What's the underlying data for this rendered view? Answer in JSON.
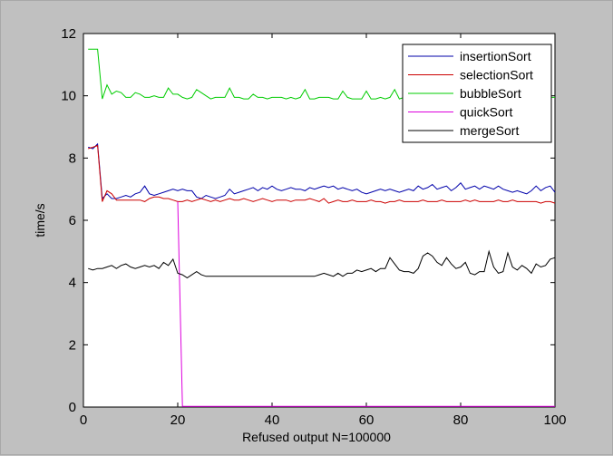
{
  "chart_data": {
    "type": "line",
    "xlabel": "Refused output N=100000",
    "ylabel": "time/s",
    "xlim": [
      0,
      100
    ],
    "ylim": [
      0,
      12
    ],
    "xticks": [
      0,
      20,
      40,
      60,
      80,
      100
    ],
    "yticks": [
      0,
      2,
      4,
      6,
      8,
      10,
      12
    ],
    "xtick_labels": [
      "0",
      "20",
      "40",
      "60",
      "80",
      "100"
    ],
    "ytick_labels": [
      "0",
      "2",
      "4",
      "6",
      "8",
      "10",
      "12"
    ],
    "grid": false,
    "legend_position": "top-right",
    "x": [
      1,
      2,
      3,
      4,
      5,
      6,
      7,
      8,
      9,
      10,
      11,
      12,
      13,
      14,
      15,
      16,
      17,
      18,
      19,
      20,
      21,
      22,
      23,
      24,
      25,
      26,
      27,
      28,
      29,
      30,
      31,
      32,
      33,
      34,
      35,
      36,
      37,
      38,
      39,
      40,
      41,
      42,
      43,
      44,
      45,
      46,
      47,
      48,
      49,
      50,
      51,
      52,
      53,
      54,
      55,
      56,
      57,
      58,
      59,
      60,
      61,
      62,
      63,
      64,
      65,
      66,
      67,
      68,
      69,
      70,
      71,
      72,
      73,
      74,
      75,
      76,
      77,
      78,
      79,
      80,
      81,
      82,
      83,
      84,
      85,
      86,
      87,
      88,
      89,
      90,
      91,
      92,
      93,
      94,
      95,
      96,
      97,
      98,
      99,
      100
    ],
    "series": [
      {
        "name": "insertionSort",
        "color": "#0000aa",
        "values": [
          8.35,
          8.3,
          8.45,
          6.7,
          6.85,
          6.7,
          6.7,
          6.75,
          6.8,
          6.75,
          6.85,
          6.9,
          7.1,
          6.85,
          6.8,
          6.85,
          6.9,
          6.95,
          7.0,
          6.95,
          7.0,
          6.95,
          6.95,
          6.75,
          6.7,
          6.8,
          6.75,
          6.7,
          6.75,
          6.8,
          7.0,
          6.85,
          6.9,
          6.95,
          7.0,
          7.05,
          6.95,
          7.05,
          7.0,
          7.1,
          7.0,
          6.95,
          7.0,
          7.05,
          7.0,
          7.0,
          6.95,
          7.05,
          7.0,
          7.05,
          7.1,
          7.05,
          7.1,
          7.0,
          7.05,
          7.0,
          6.95,
          7.0,
          6.9,
          6.85,
          6.9,
          6.95,
          7.0,
          6.95,
          7.0,
          6.95,
          6.9,
          6.95,
          7.0,
          6.95,
          7.1,
          7.0,
          7.05,
          7.15,
          7.0,
          7.05,
          7.1,
          6.95,
          7.05,
          7.2,
          7.0,
          7.05,
          7.1,
          7.0,
          7.1,
          7.05,
          7.0,
          7.1,
          7.0,
          6.95,
          6.9,
          6.95,
          6.9,
          6.85,
          6.95,
          7.1,
          6.95,
          7.05,
          7.1,
          6.9
        ]
      },
      {
        "name": "selectionSort",
        "color": "#cc0000",
        "values": [
          8.3,
          8.35,
          8.4,
          6.6,
          6.95,
          6.85,
          6.65,
          6.65,
          6.65,
          6.65,
          6.65,
          6.65,
          6.6,
          6.7,
          6.75,
          6.75,
          6.7,
          6.7,
          6.65,
          6.6,
          6.6,
          6.65,
          6.6,
          6.65,
          6.7,
          6.65,
          6.6,
          6.65,
          6.6,
          6.65,
          6.7,
          6.65,
          6.65,
          6.7,
          6.65,
          6.6,
          6.65,
          6.7,
          6.65,
          6.6,
          6.65,
          6.65,
          6.65,
          6.6,
          6.65,
          6.65,
          6.65,
          6.7,
          6.65,
          6.6,
          6.7,
          6.55,
          6.6,
          6.65,
          6.6,
          6.6,
          6.65,
          6.6,
          6.6,
          6.6,
          6.65,
          6.6,
          6.6,
          6.55,
          6.6,
          6.6,
          6.65,
          6.6,
          6.6,
          6.6,
          6.6,
          6.65,
          6.6,
          6.6,
          6.6,
          6.65,
          6.6,
          6.6,
          6.6,
          6.6,
          6.65,
          6.6,
          6.65,
          6.6,
          6.6,
          6.6,
          6.6,
          6.65,
          6.6,
          6.6,
          6.65,
          6.6,
          6.6,
          6.6,
          6.6,
          6.6,
          6.55,
          6.6,
          6.6,
          6.55
        ]
      },
      {
        "name": "bubbleSort",
        "color": "#00cc00",
        "values": [
          11.5,
          11.5,
          11.5,
          9.9,
          10.35,
          10.05,
          10.15,
          10.1,
          9.95,
          9.95,
          10.1,
          10.05,
          9.95,
          9.95,
          10.0,
          9.95,
          9.95,
          10.25,
          10.05,
          10.05,
          9.95,
          9.9,
          9.95,
          10.2,
          10.1,
          10.0,
          9.9,
          9.95,
          9.95,
          9.95,
          10.25,
          9.95,
          9.95,
          9.9,
          9.9,
          10.05,
          9.95,
          9.95,
          9.9,
          9.95,
          9.95,
          9.95,
          9.9,
          9.95,
          9.9,
          9.95,
          10.2,
          9.9,
          9.9,
          9.95,
          9.95,
          9.95,
          9.9,
          9.9,
          10.15,
          9.95,
          9.9,
          9.9,
          9.9,
          10.15,
          9.9,
          9.9,
          9.95,
          9.9,
          9.95,
          10.2,
          9.9,
          9.95,
          9.95,
          9.95,
          9.9,
          9.95,
          9.95,
          9.95,
          9.9,
          10.05,
          9.95,
          9.95,
          9.9,
          9.95,
          9.95,
          9.95,
          9.9,
          9.9,
          9.95,
          9.9,
          9.95,
          9.95,
          9.9,
          9.95,
          9.95,
          9.9,
          9.95,
          9.95,
          9.9,
          9.95,
          9.95,
          9.9,
          9.95,
          9.95
        ]
      },
      {
        "name": "quickSort",
        "color": "#dd00dd",
        "values": [
          8.3,
          8.35,
          8.4,
          6.65,
          6.9,
          6.85,
          6.65,
          6.65,
          6.65,
          6.7,
          6.65,
          6.65,
          6.65,
          6.7,
          6.7,
          6.7,
          6.7,
          6.65,
          6.65,
          6.6,
          0.02,
          0.02,
          0.02,
          0.02,
          0.02,
          0.02,
          0.02,
          0.02,
          0.02,
          0.02,
          0.02,
          0.02,
          0.02,
          0.02,
          0.02,
          0.02,
          0.02,
          0.02,
          0.02,
          0.02,
          0.02,
          0.02,
          0.02,
          0.02,
          0.02,
          0.02,
          0.02,
          0.02,
          0.02,
          0.02,
          0.02,
          0.02,
          0.02,
          0.02,
          0.02,
          0.02,
          0.02,
          0.02,
          0.02,
          0.02,
          0.02,
          0.02,
          0.02,
          0.02,
          0.02,
          0.02,
          0.02,
          0.02,
          0.02,
          0.02,
          0.02,
          0.02,
          0.02,
          0.02,
          0.02,
          0.02,
          0.02,
          0.02,
          0.02,
          0.02,
          0.02,
          0.02,
          0.02,
          0.02,
          0.02,
          0.02,
          0.02,
          0.02,
          0.02,
          0.02,
          0.02,
          0.02,
          0.02,
          0.02,
          0.02,
          0.02,
          0.02,
          0.02,
          0.02,
          0.02
        ],
        "draw_from": 20
      },
      {
        "name": "mergeSort",
        "color": "#000000",
        "values": [
          4.45,
          4.4,
          4.45,
          4.45,
          4.5,
          4.55,
          4.45,
          4.55,
          4.6,
          4.5,
          4.45,
          4.5,
          4.55,
          4.5,
          4.55,
          4.45,
          4.65,
          4.55,
          4.75,
          4.3,
          4.25,
          4.15,
          4.25,
          4.35,
          4.25,
          4.2,
          4.2,
          4.2,
          4.2,
          4.2,
          4.2,
          4.2,
          4.2,
          4.2,
          4.2,
          4.2,
          4.2,
          4.2,
          4.2,
          4.2,
          4.2,
          4.2,
          4.2,
          4.2,
          4.2,
          4.2,
          4.2,
          4.2,
          4.2,
          4.25,
          4.3,
          4.25,
          4.2,
          4.3,
          4.2,
          4.3,
          4.3,
          4.4,
          4.35,
          4.4,
          4.45,
          4.35,
          4.45,
          4.45,
          4.8,
          4.6,
          4.4,
          4.35,
          4.35,
          4.3,
          4.45,
          4.85,
          4.95,
          4.85,
          4.65,
          4.55,
          4.8,
          4.6,
          4.45,
          4.5,
          4.65,
          4.3,
          4.25,
          4.35,
          4.35,
          5.0,
          4.5,
          4.3,
          4.35,
          4.95,
          4.5,
          4.4,
          4.55,
          4.45,
          4.3,
          4.6,
          4.5,
          4.55,
          4.75,
          4.8
        ]
      }
    ]
  }
}
